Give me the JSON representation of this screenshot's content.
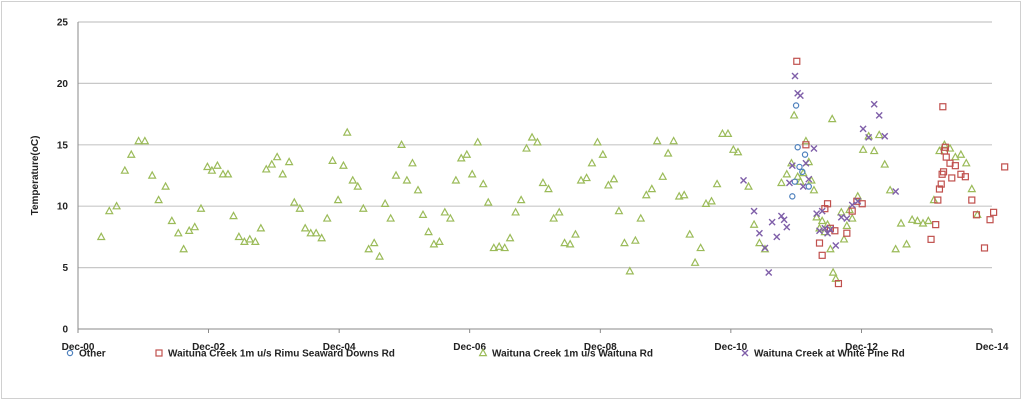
{
  "chart_data": {
    "type": "scatter",
    "title": "",
    "xlabel": "",
    "ylabel": "Temperature(oC)",
    "xlim": [
      "2000-12-01",
      "2014-12-01"
    ],
    "ylim": [
      0,
      25
    ],
    "y_ticks": [
      "0",
      "5",
      "10",
      "15",
      "20",
      "25"
    ],
    "x_ticks": [
      {
        "date": "2000-12-01",
        "label": "Dec-00"
      },
      {
        "date": "2002-12-01",
        "label": "Dec-02"
      },
      {
        "date": "2004-12-01",
        "label": "Dec-04"
      },
      {
        "date": "2006-12-01",
        "label": "Dec-06"
      },
      {
        "date": "2008-12-01",
        "label": "Dec-08"
      },
      {
        "date": "2010-12-01",
        "label": "Dec-10"
      },
      {
        "date": "2012-12-01",
        "label": "Dec-12"
      },
      {
        "date": "2014-12-01",
        "label": "Dec-14"
      }
    ],
    "grid": "horizontal",
    "legend_position": "bottom",
    "series": [
      {
        "name": "Other",
        "marker": "circle",
        "color": "#4f81bd",
        "points": [
          [
            "2011-11-10",
            10.8
          ],
          [
            "2011-11-24",
            12.0
          ],
          [
            "2011-12-10",
            14.8
          ],
          [
            "2011-12-01",
            18.2
          ],
          [
            "2012-01-05",
            12.8
          ],
          [
            "2012-01-20",
            14.2
          ],
          [
            "2012-02-10",
            11.6
          ],
          [
            "2011-12-20",
            13.2
          ]
        ]
      },
      {
        "name": "Waituna Creek 1m u/s Rimu Seaward Downs Rd",
        "marker": "square",
        "color": "#c0504d",
        "points": [
          [
            "2011-12-05",
            21.8
          ],
          [
            "2012-01-25",
            15.0
          ],
          [
            "2012-04-10",
            7.0
          ],
          [
            "2012-04-25",
            6.0
          ],
          [
            "2012-05-10",
            9.8
          ],
          [
            "2012-05-25",
            10.2
          ],
          [
            "2012-06-10",
            8.2
          ],
          [
            "2012-07-05",
            8.0
          ],
          [
            "2012-07-25",
            3.7
          ],
          [
            "2012-09-10",
            7.8
          ],
          [
            "2012-10-10",
            9.6
          ],
          [
            "2012-11-05",
            10.4
          ],
          [
            "2012-12-05",
            10.2
          ],
          [
            "2013-12-25",
            7.3
          ],
          [
            "2014-01-20",
            8.5
          ],
          [
            "2014-02-01",
            10.5
          ],
          [
            "2014-02-10",
            11.4
          ],
          [
            "2014-02-20",
            11.8
          ],
          [
            "2014-02-25",
            12.6
          ],
          [
            "2014-03-05",
            12.8
          ],
          [
            "2014-03-10",
            14.5
          ],
          [
            "2014-03-01",
            18.1
          ],
          [
            "2014-03-15",
            14.8
          ],
          [
            "2014-03-20",
            14.0
          ],
          [
            "2014-04-10",
            13.5
          ],
          [
            "2014-04-20",
            12.3
          ],
          [
            "2014-05-10",
            13.3
          ],
          [
            "2014-06-10",
            12.6
          ],
          [
            "2014-07-05",
            12.4
          ],
          [
            "2014-08-10",
            10.5
          ],
          [
            "2014-09-05",
            9.3
          ],
          [
            "2014-10-20",
            6.6
          ],
          [
            "2014-11-20",
            8.9
          ],
          [
            "2014-12-10",
            9.5
          ],
          [
            "2015-02-10",
            13.2
          ]
        ]
      },
      {
        "name": "Waituna Creek 1m u/s Waituna Rd",
        "marker": "triangle",
        "color": "#9bbb59",
        "points": [
          [
            "2001-04-10",
            7.5
          ],
          [
            "2001-05-25",
            9.6
          ],
          [
            "2001-07-05",
            10.0
          ],
          [
            "2001-08-20",
            12.9
          ],
          [
            "2001-09-25",
            14.2
          ],
          [
            "2001-11-05",
            15.3
          ],
          [
            "2001-12-10",
            15.3
          ],
          [
            "2002-01-20",
            12.5
          ],
          [
            "2002-02-25",
            10.5
          ],
          [
            "2002-04-05",
            11.6
          ],
          [
            "2002-05-10",
            8.8
          ],
          [
            "2002-06-15",
            7.8
          ],
          [
            "2002-07-15",
            6.5
          ],
          [
            "2002-08-15",
            8.0
          ],
          [
            "2002-09-15",
            8.3
          ],
          [
            "2002-10-20",
            9.8
          ],
          [
            "2002-11-25",
            13.2
          ],
          [
            "2002-12-20",
            12.9
          ],
          [
            "2003-01-20",
            13.3
          ],
          [
            "2003-02-20",
            12.6
          ],
          [
            "2003-03-20",
            12.6
          ],
          [
            "2003-04-20",
            9.2
          ],
          [
            "2003-05-20",
            7.5
          ],
          [
            "2003-06-20",
            7.1
          ],
          [
            "2003-07-20",
            7.3
          ],
          [
            "2003-08-20",
            7.1
          ],
          [
            "2003-09-20",
            8.2
          ],
          [
            "2003-10-20",
            13.0
          ],
          [
            "2003-11-20",
            13.4
          ],
          [
            "2003-12-20",
            14.0
          ],
          [
            "2004-01-20",
            12.6
          ],
          [
            "2004-02-25",
            13.6
          ],
          [
            "2004-03-25",
            10.3
          ],
          [
            "2004-04-25",
            9.8
          ],
          [
            "2004-05-25",
            8.2
          ],
          [
            "2004-06-25",
            7.8
          ],
          [
            "2004-07-25",
            7.8
          ],
          [
            "2004-08-25",
            7.4
          ],
          [
            "2004-09-25",
            9.0
          ],
          [
            "2004-10-25",
            13.7
          ],
          [
            "2004-11-25",
            10.5
          ],
          [
            "2004-12-25",
            13.3
          ],
          [
            "2005-01-15",
            16.0
          ],
          [
            "2005-02-15",
            12.1
          ],
          [
            "2005-03-15",
            11.6
          ],
          [
            "2005-04-15",
            9.8
          ],
          [
            "2005-05-15",
            6.5
          ],
          [
            "2005-06-15",
            7.0
          ],
          [
            "2005-07-15",
            5.9
          ],
          [
            "2005-08-15",
            10.2
          ],
          [
            "2005-09-15",
            9.0
          ],
          [
            "2005-10-15",
            12.5
          ],
          [
            "2005-11-15",
            15.0
          ],
          [
            "2005-12-15",
            12.1
          ],
          [
            "2006-01-15",
            13.5
          ],
          [
            "2006-02-15",
            11.3
          ],
          [
            "2006-03-15",
            9.3
          ],
          [
            "2006-04-15",
            7.9
          ],
          [
            "2006-05-15",
            6.9
          ],
          [
            "2006-06-15",
            7.1
          ],
          [
            "2006-07-15",
            9.5
          ],
          [
            "2006-08-15",
            9.0
          ],
          [
            "2006-09-15",
            12.1
          ],
          [
            "2006-10-15",
            13.9
          ],
          [
            "2006-11-15",
            14.2
          ],
          [
            "2006-12-15",
            12.6
          ],
          [
            "2007-01-15",
            15.2
          ],
          [
            "2007-02-15",
            11.8
          ],
          [
            "2007-03-15",
            10.3
          ],
          [
            "2007-04-15",
            6.6
          ],
          [
            "2007-05-15",
            6.7
          ],
          [
            "2007-06-15",
            6.6
          ],
          [
            "2007-07-15",
            7.4
          ],
          [
            "2007-08-15",
            9.5
          ],
          [
            "2007-09-15",
            10.5
          ],
          [
            "2007-10-15",
            14.7
          ],
          [
            "2007-11-15",
            15.6
          ],
          [
            "2007-12-15",
            15.2
          ],
          [
            "2008-01-15",
            11.9
          ],
          [
            "2008-02-15",
            11.4
          ],
          [
            "2008-03-15",
            9.0
          ],
          [
            "2008-04-15",
            9.5
          ],
          [
            "2008-05-15",
            7.0
          ],
          [
            "2008-06-15",
            6.9
          ],
          [
            "2008-07-15",
            7.7
          ],
          [
            "2008-08-15",
            12.1
          ],
          [
            "2008-09-15",
            12.3
          ],
          [
            "2008-10-15",
            13.5
          ],
          [
            "2008-11-15",
            15.2
          ],
          [
            "2008-12-15",
            14.2
          ],
          [
            "2009-01-15",
            11.7
          ],
          [
            "2009-02-15",
            12.2
          ],
          [
            "2009-03-15",
            9.6
          ],
          [
            "2009-04-15",
            7.0
          ],
          [
            "2009-05-15",
            4.7
          ],
          [
            "2009-06-15",
            7.2
          ],
          [
            "2009-07-15",
            9.0
          ],
          [
            "2009-08-15",
            10.9
          ],
          [
            "2009-09-15",
            11.4
          ],
          [
            "2009-10-15",
            15.3
          ],
          [
            "2009-11-15",
            12.4
          ],
          [
            "2009-12-15",
            14.3
          ],
          [
            "2010-01-15",
            15.3
          ],
          [
            "2010-02-15",
            10.8
          ],
          [
            "2010-03-15",
            10.9
          ],
          [
            "2010-04-15",
            7.7
          ],
          [
            "2010-05-15",
            5.4
          ],
          [
            "2010-06-15",
            6.6
          ],
          [
            "2010-07-15",
            10.2
          ],
          [
            "2010-08-15",
            10.4
          ],
          [
            "2010-09-15",
            11.8
          ],
          [
            "2010-10-15",
            15.9
          ],
          [
            "2010-11-15",
            15.9
          ],
          [
            "2010-12-15",
            14.6
          ],
          [
            "2011-01-10",
            14.4
          ],
          [
            "2011-03-10",
            11.6
          ],
          [
            "2011-04-10",
            8.5
          ],
          [
            "2011-05-10",
            7.0
          ],
          [
            "2011-06-10",
            6.5
          ],
          [
            "2011-09-10",
            11.9
          ],
          [
            "2011-10-10",
            12.6
          ],
          [
            "2011-11-05",
            13.5
          ],
          [
            "2011-11-20",
            17.4
          ],
          [
            "2011-12-10",
            12.4
          ],
          [
            "2011-12-25",
            12.0
          ],
          [
            "2012-01-10",
            12.7
          ],
          [
            "2012-01-25",
            15.3
          ],
          [
            "2012-02-10",
            13.6
          ],
          [
            "2012-02-25",
            12.1
          ],
          [
            "2012-03-10",
            11.3
          ],
          [
            "2012-03-25",
            9.1
          ],
          [
            "2012-04-10",
            8.2
          ],
          [
            "2012-04-25",
            8.8
          ],
          [
            "2012-05-10",
            7.9
          ],
          [
            "2012-05-25",
            8.5
          ],
          [
            "2012-06-10",
            6.5
          ],
          [
            "2012-06-25",
            4.6
          ],
          [
            "2012-07-10",
            4.1
          ],
          [
            "2012-06-20",
            17.1
          ],
          [
            "2012-08-10",
            9.5
          ],
          [
            "2012-08-25",
            7.3
          ],
          [
            "2012-09-10",
            8.4
          ],
          [
            "2012-09-25",
            9.7
          ],
          [
            "2012-10-10",
            9.0
          ],
          [
            "2012-11-10",
            10.8
          ],
          [
            "2012-12-10",
            14.6
          ],
          [
            "2013-01-10",
            15.7
          ],
          [
            "2013-02-10",
            14.5
          ],
          [
            "2013-03-10",
            15.8
          ],
          [
            "2013-04-10",
            13.4
          ],
          [
            "2013-05-10",
            11.3
          ],
          [
            "2013-06-10",
            6.5
          ],
          [
            "2013-07-10",
            8.6
          ],
          [
            "2013-08-10",
            6.9
          ],
          [
            "2013-09-10",
            8.9
          ],
          [
            "2013-10-10",
            8.8
          ],
          [
            "2013-11-10",
            8.6
          ],
          [
            "2013-12-10",
            8.8
          ],
          [
            "2014-01-10",
            10.5
          ],
          [
            "2014-02-10",
            14.5
          ],
          [
            "2014-03-10",
            15.0
          ],
          [
            "2014-04-10",
            14.7
          ],
          [
            "2014-05-10",
            14.0
          ],
          [
            "2014-06-10",
            14.2
          ],
          [
            "2014-07-10",
            13.5
          ],
          [
            "2014-08-10",
            11.4
          ],
          [
            "2014-09-10",
            9.3
          ]
        ]
      },
      {
        "name": "Waituna Creek at White Pine Rd",
        "marker": "x",
        "color": "#7f5fa9",
        "points": [
          [
            "2011-02-10",
            12.1
          ],
          [
            "2011-04-10",
            9.6
          ],
          [
            "2011-05-10",
            7.8
          ],
          [
            "2011-06-10",
            6.6
          ],
          [
            "2011-07-01",
            4.6
          ],
          [
            "2011-07-20",
            8.7
          ],
          [
            "2011-08-15",
            7.5
          ],
          [
            "2011-09-10",
            9.2
          ],
          [
            "2011-09-25",
            8.9
          ],
          [
            "2011-10-10",
            8.3
          ],
          [
            "2011-10-25",
            11.9
          ],
          [
            "2011-11-10",
            13.3
          ],
          [
            "2011-11-25",
            20.6
          ],
          [
            "2011-12-10",
            19.2
          ],
          [
            "2011-12-25",
            19.0
          ],
          [
            "2012-01-10",
            11.6
          ],
          [
            "2012-01-25",
            13.5
          ],
          [
            "2012-02-10",
            12.2
          ],
          [
            "2012-03-10",
            14.7
          ],
          [
            "2012-03-25",
            9.4
          ],
          [
            "2012-04-10",
            8.0
          ],
          [
            "2012-04-25",
            9.6
          ],
          [
            "2012-05-10",
            8.2
          ],
          [
            "2012-05-25",
            7.8
          ],
          [
            "2012-06-10",
            8.1
          ],
          [
            "2012-07-10",
            6.8
          ],
          [
            "2012-08-10",
            9.1
          ],
          [
            "2012-09-10",
            9.0
          ],
          [
            "2012-10-10",
            10.1
          ],
          [
            "2012-11-10",
            10.4
          ],
          [
            "2012-12-10",
            16.3
          ],
          [
            "2013-01-10",
            15.6
          ],
          [
            "2013-02-10",
            18.3
          ],
          [
            "2013-03-10",
            17.4
          ],
          [
            "2013-04-10",
            15.7
          ],
          [
            "2013-06-10",
            11.2
          ]
        ]
      }
    ]
  }
}
